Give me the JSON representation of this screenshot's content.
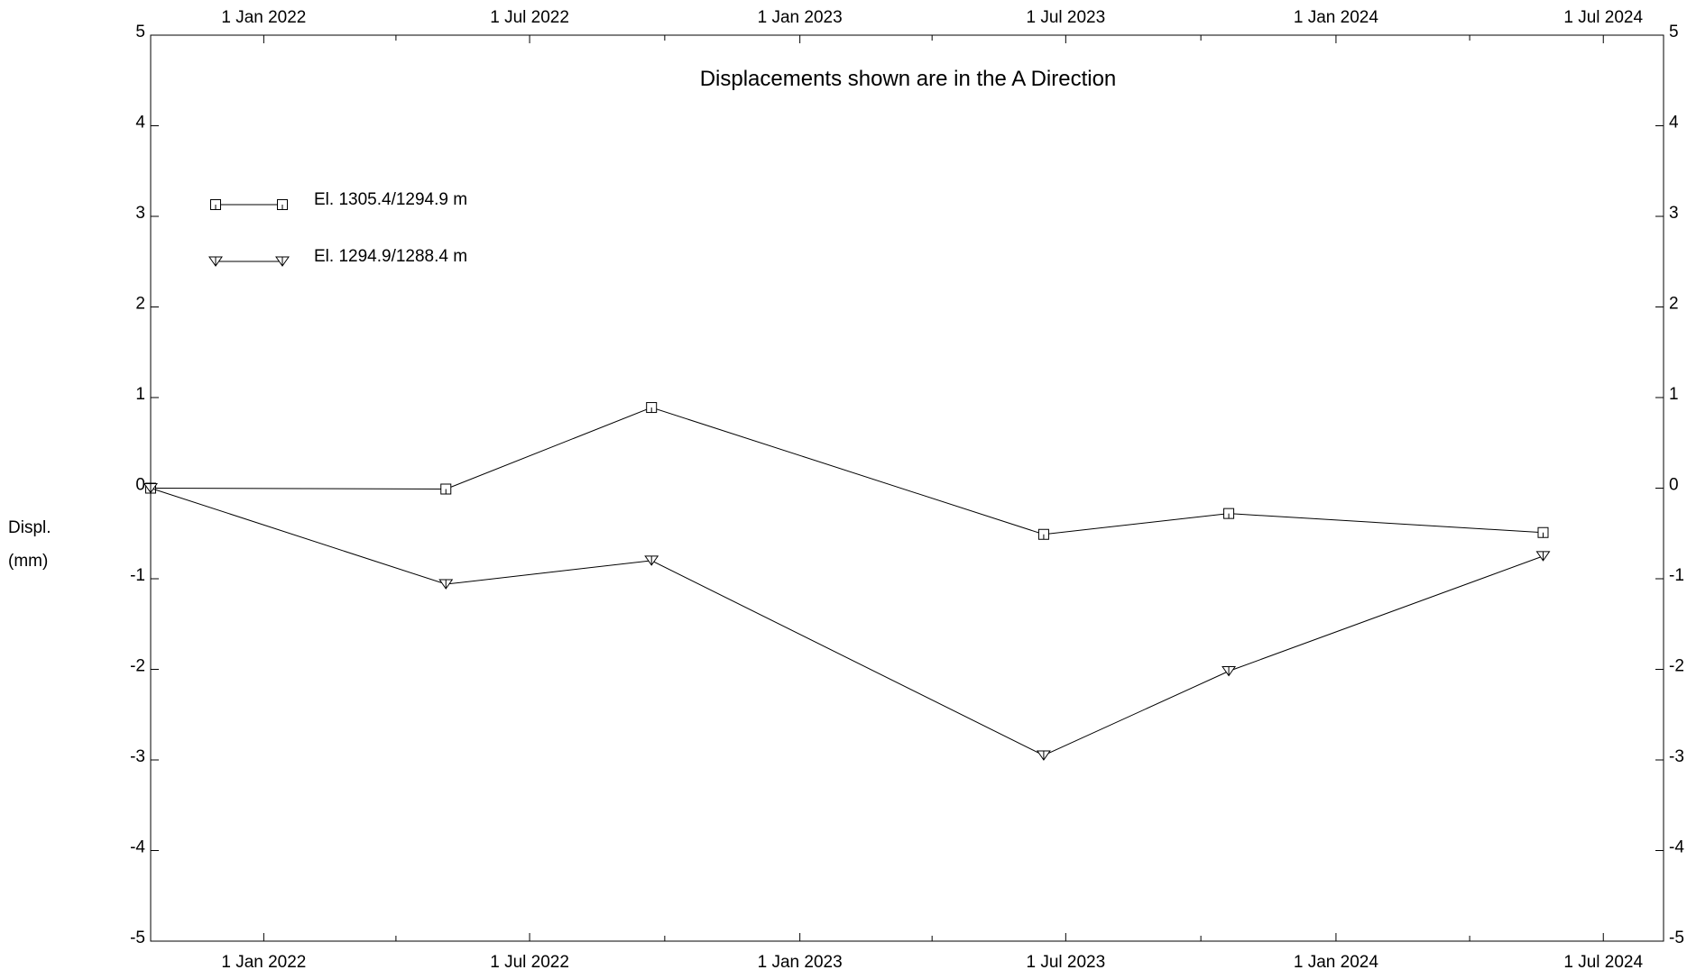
{
  "chart_data": {
    "type": "line",
    "title": "Displacements shown are in the  A Direction",
    "ylabel_lines": [
      "Displ.",
      "(mm)"
    ],
    "ylim": [
      -5,
      5
    ],
    "y_ticks": [
      "5",
      "4",
      "3",
      "2",
      "1",
      "0",
      "-1",
      "-2",
      "-3",
      "-4",
      "-5"
    ],
    "xlim": [
      "2021-10-16",
      "2024-08-11"
    ],
    "x_tick_dates": [
      "2022-01-01",
      "2022-07-01",
      "2023-01-01",
      "2023-07-01",
      "2024-01-01",
      "2024-07-01"
    ],
    "x_tick_labels": [
      "1 Jan 2022",
      "1 Jul 2022",
      "1 Jan 2023",
      "1 Jul 2023",
      "1 Jan 2024",
      "1 Jul 2024"
    ],
    "grid": false,
    "legend_position": "top-left",
    "x": [
      "2021-10-16",
      "2022-05-05",
      "2022-09-22",
      "2023-06-16",
      "2023-10-20",
      "2024-05-21"
    ],
    "series": [
      {
        "name": "El. 1305.4/1294.9 m",
        "marker": "square",
        "values": [
          0.0,
          -0.01,
          0.89,
          -0.51,
          -0.28,
          -0.49
        ]
      },
      {
        "name": "El. 1294.9/1288.4 m",
        "marker": "triangle-down",
        "values": [
          0.0,
          -1.06,
          -0.8,
          -2.95,
          -2.02,
          -0.75
        ]
      }
    ]
  }
}
